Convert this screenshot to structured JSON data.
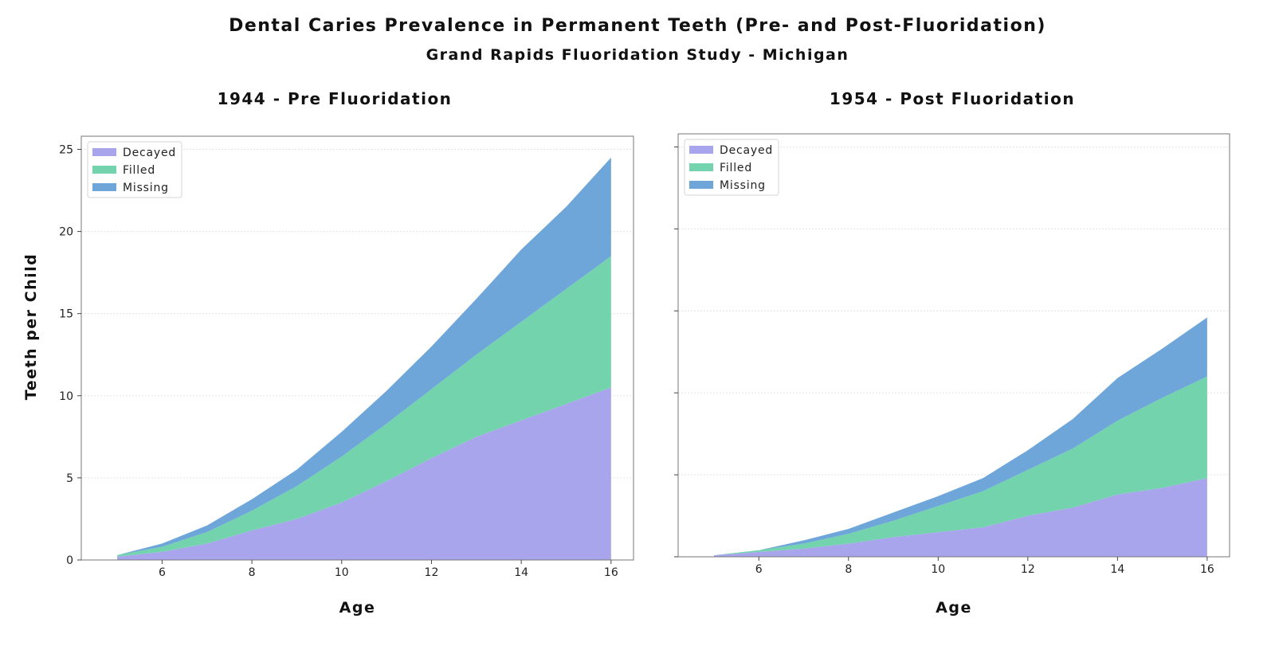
{
  "title": "Dental Caries Prevalence in Permanent Teeth (Pre- and Post-Fluoridation)",
  "subtitle": "Grand Rapids Fluoridation Study - Michigan",
  "ylabel": "Teeth per Child",
  "chart_data": [
    {
      "type": "area",
      "stacked": true,
      "title": "1944 - Pre Fluoridation",
      "xlabel": "Age",
      "ylabel": "Teeth per Child",
      "x": [
        5,
        6,
        7,
        8,
        9,
        10,
        11,
        12,
        13,
        14,
        15,
        16
      ],
      "xticks": [
        6,
        8,
        10,
        12,
        14,
        16
      ],
      "xlim": [
        4.2,
        16.5
      ],
      "yticks": [
        0,
        5,
        10,
        15,
        20,
        25
      ],
      "ylim": [
        0,
        25.8
      ],
      "show_ytick_labels": true,
      "grid": true,
      "legend": "top-left",
      "series": [
        {
          "name": "Decayed",
          "color": "#a9a5ec",
          "values": [
            0.2,
            0.5,
            1.0,
            1.8,
            2.5,
            3.5,
            4.8,
            6.2,
            7.5,
            8.5,
            9.5,
            10.5
          ]
        },
        {
          "name": "Filled",
          "color": "#72d3ad",
          "values": [
            0.1,
            0.3,
            0.7,
            1.2,
            2.0,
            2.8,
            3.5,
            4.2,
            5.0,
            6.0,
            7.0,
            8.0
          ]
        },
        {
          "name": "Missing",
          "color": "#6ea6da",
          "values": [
            0.0,
            0.2,
            0.4,
            0.7,
            1.0,
            1.5,
            2.0,
            2.6,
            3.4,
            4.4,
            5.0,
            6.0
          ]
        }
      ]
    },
    {
      "type": "area",
      "stacked": true,
      "title": "1954 - Post Fluoridation",
      "xlabel": "Age",
      "x": [
        5,
        6,
        7,
        8,
        9,
        10,
        11,
        12,
        13,
        14,
        15,
        16
      ],
      "xticks": [
        6,
        8,
        10,
        12,
        14,
        16
      ],
      "xlim": [
        4.2,
        16.5
      ],
      "yticks": [
        0,
        5,
        10,
        15,
        20,
        25
      ],
      "ylim": [
        0,
        25.8
      ],
      "show_ytick_labels": false,
      "grid": true,
      "legend": "top-left",
      "series": [
        {
          "name": "Decayed",
          "color": "#a9a5ec",
          "values": [
            0.1,
            0.3,
            0.5,
            0.8,
            1.2,
            1.5,
            1.8,
            2.5,
            3.0,
            3.8,
            4.2,
            4.8
          ]
        },
        {
          "name": "Filled",
          "color": "#72d3ad",
          "values": [
            0.0,
            0.1,
            0.3,
            0.6,
            1.0,
            1.6,
            2.2,
            2.8,
            3.6,
            4.5,
            5.5,
            6.2
          ]
        },
        {
          "name": "Missing",
          "color": "#6ea6da",
          "values": [
            0.0,
            0.0,
            0.2,
            0.3,
            0.5,
            0.6,
            0.8,
            1.2,
            1.8,
            2.6,
            3.0,
            3.6
          ]
        }
      ]
    }
  ]
}
